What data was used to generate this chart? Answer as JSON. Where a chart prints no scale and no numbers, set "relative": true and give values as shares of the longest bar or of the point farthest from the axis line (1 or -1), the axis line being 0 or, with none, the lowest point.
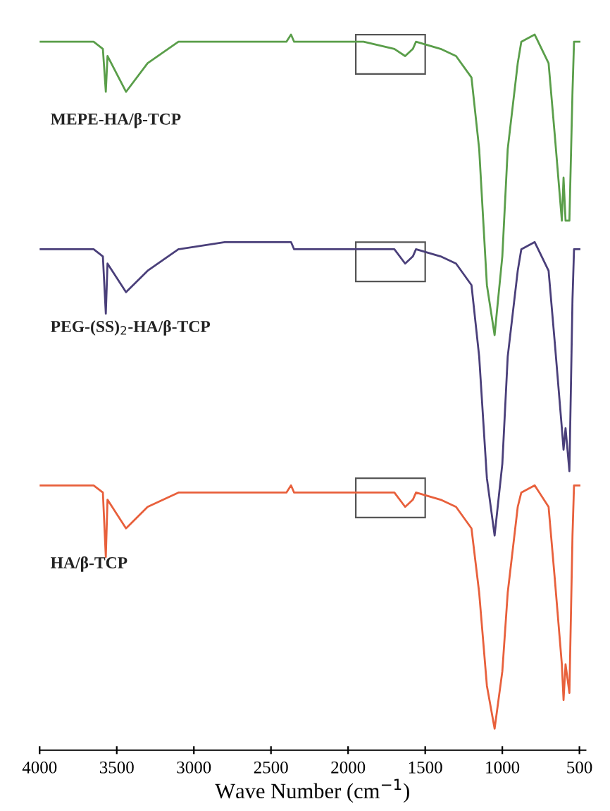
{
  "chart_data": {
    "type": "line",
    "relative": true,
    "xlabel": "Wave Number (cm$^{−1}$)",
    "xlim": [
      4000,
      460
    ],
    "xticks": [
      4000,
      3500,
      3000,
      2500,
      2000,
      1500,
      1000,
      500
    ],
    "tick_labels": "x",
    "grid": false,
    "legend": false,
    "marker": "none",
    "line_style": "solid",
    "x": [
      4000,
      3800,
      3650,
      3590,
      3571,
      3560,
      3440,
      3300,
      3100,
      2800,
      2400,
      2370,
      2350,
      2000,
      1900,
      1700,
      1630,
      1580,
      1560,
      1400,
      1300,
      1200,
      1150,
      1100,
      1050,
      1000,
      965,
      900,
      877,
      790,
      700,
      660,
      614,
      603,
      590,
      565,
      545,
      535,
      500
    ],
    "series": [
      {
        "name": "MEPE-HA/β-TCP",
        "color": "#5a9e4a",
        "values": [
          0.99,
          0.99,
          0.99,
          0.98,
          0.92,
          0.97,
          0.92,
          0.96,
          0.99,
          0.99,
          0.99,
          1.0,
          0.99,
          0.99,
          0.99,
          0.98,
          0.97,
          0.98,
          0.99,
          0.98,
          0.97,
          0.94,
          0.84,
          0.65,
          0.58,
          0.69,
          0.84,
          0.96,
          0.99,
          1.0,
          0.96,
          0.86,
          0.74,
          0.8,
          0.74,
          0.74,
          0.92,
          0.99,
          0.99
        ]
      },
      {
        "name": "PEG-(SS)$_{2}$-HA/β-TCP",
        "color": "#4a3f7a",
        "values": [
          0.7,
          0.7,
          0.7,
          0.69,
          0.61,
          0.68,
          0.64,
          0.67,
          0.7,
          0.71,
          0.71,
          0.71,
          0.7,
          0.7,
          0.7,
          0.7,
          0.68,
          0.69,
          0.7,
          0.69,
          0.68,
          0.65,
          0.55,
          0.38,
          0.3,
          0.4,
          0.55,
          0.67,
          0.7,
          0.71,
          0.67,
          0.57,
          0.45,
          0.42,
          0.45,
          0.39,
          0.63,
          0.7,
          0.7
        ]
      },
      {
        "name": "HA/β-TCP",
        "color": "#e8603c",
        "values": [
          0.37,
          0.37,
          0.37,
          0.36,
          0.27,
          0.35,
          0.31,
          0.34,
          0.36,
          0.36,
          0.36,
          0.37,
          0.36,
          0.36,
          0.36,
          0.36,
          0.34,
          0.35,
          0.36,
          0.35,
          0.34,
          0.31,
          0.22,
          0.09,
          0.03,
          0.11,
          0.22,
          0.34,
          0.36,
          0.37,
          0.34,
          0.24,
          0.12,
          0.07,
          0.12,
          0.08,
          0.3,
          0.37,
          0.37
        ]
      }
    ]
  }
}
